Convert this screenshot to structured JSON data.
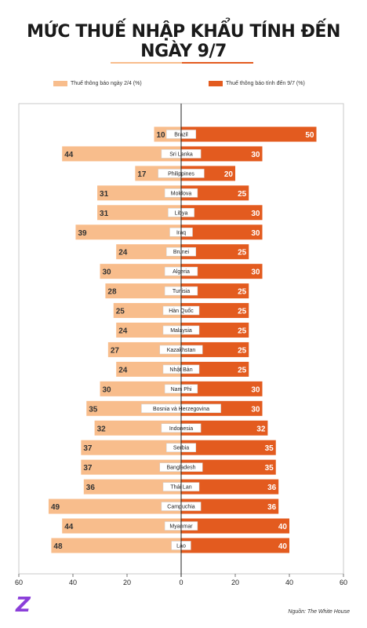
{
  "title": "MỨC THUẾ NHẬP KHẨU TÍNH ĐẾN NGÀY 9/7",
  "colors": {
    "left": "#f8bd8c",
    "right": "#e35b1f",
    "axis": "#222222",
    "grid": "#e5e5e5"
  },
  "legend": {
    "left_label": "Thuế thông báo ngày 2/4 (%)",
    "right_label": "Thuế thông báo tính đến 9/7 (%)"
  },
  "source": "Nguồn: The White House",
  "chart_data": {
    "type": "bar",
    "orientation": "horizontal-diverging",
    "categories": [
      "Brazil",
      "Sri Lanka",
      "Philippines",
      "Moldova",
      "Libya",
      "Iraq",
      "Brunei",
      "Algeria",
      "Tunisia",
      "Hàn Quốc",
      "Malaysia",
      "Kazakhstan",
      "Nhật Bản",
      "Nam Phi",
      "Bosnia và Herzegovina",
      "Indonesia",
      "Serbia",
      "Bangladesh",
      "Thái Lan",
      "Campuchia",
      "Myanmar",
      "Lào"
    ],
    "series": [
      {
        "name": "Thuế thông báo ngày 2/4 (%)",
        "values": [
          10,
          44,
          17,
          31,
          31,
          39,
          24,
          30,
          28,
          25,
          24,
          27,
          24,
          30,
          35,
          32,
          37,
          37,
          36,
          49,
          44,
          48
        ]
      },
      {
        "name": "Thuế thông báo tính đến 9/7 (%)",
        "values": [
          50,
          30,
          20,
          25,
          30,
          30,
          25,
          30,
          25,
          25,
          25,
          25,
          25,
          30,
          30,
          32,
          35,
          35,
          36,
          36,
          40,
          40
        ]
      }
    ],
    "xlim": [
      -60,
      60
    ],
    "x_ticks": [
      -60,
      -40,
      -20,
      0,
      20,
      40,
      60
    ],
    "x_tick_labels": [
      "60",
      "40",
      "20",
      "0",
      "20",
      "40",
      "60"
    ],
    "grid": false,
    "legend_position": "top"
  }
}
